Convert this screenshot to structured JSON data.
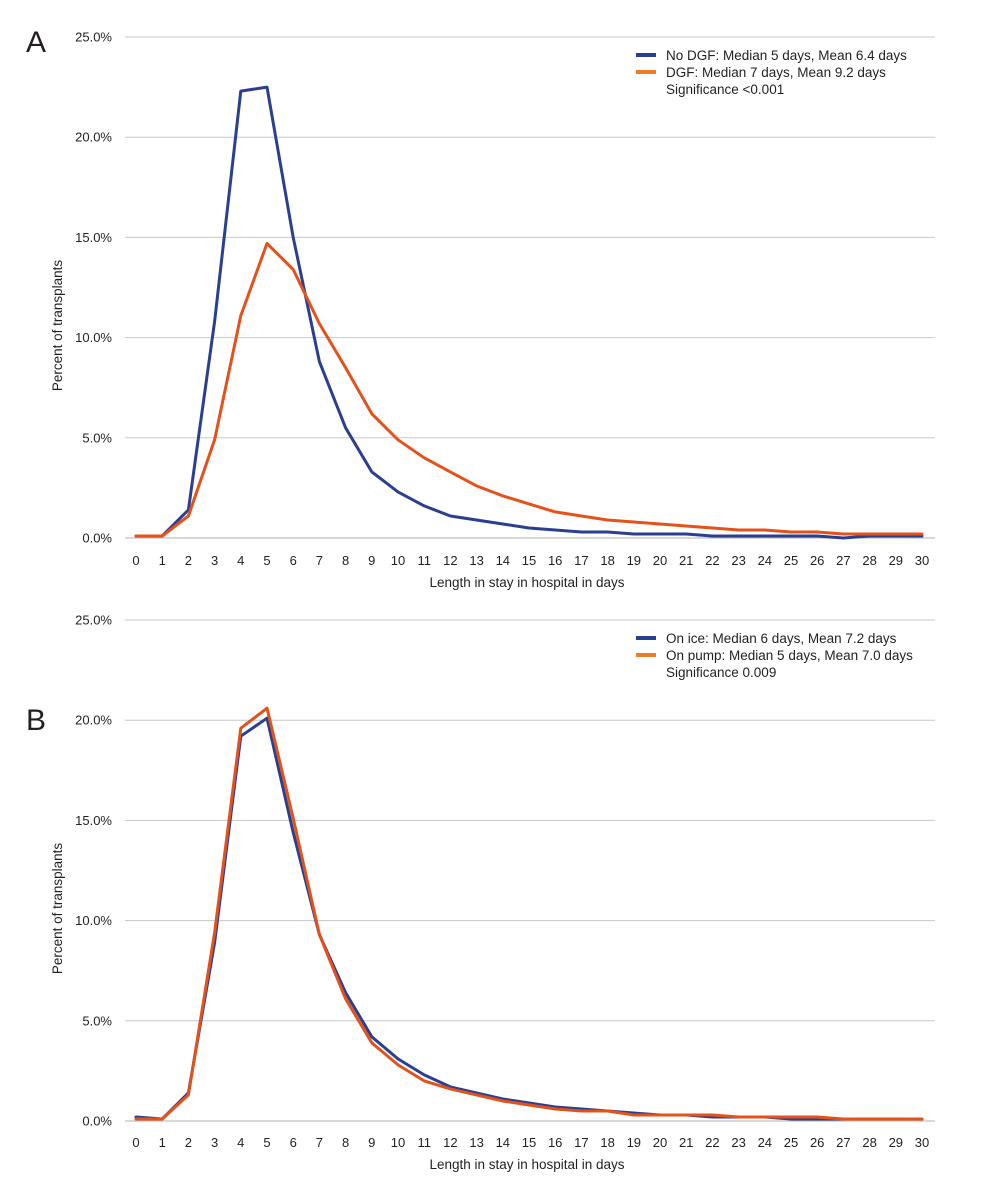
{
  "colors": {
    "series_blue": "#2a3f8f",
    "series_orange": "#e4521b",
    "legend_orange": "#f07b22",
    "gridline": "#c8c8c8",
    "text": "#231f20"
  },
  "chart_data": [
    {
      "panel": "A",
      "type": "line",
      "xlabel": "Length in stay in hospital in days",
      "ylabel": "Percent of transplants",
      "x": [
        0,
        1,
        2,
        3,
        4,
        5,
        6,
        7,
        8,
        9,
        10,
        11,
        12,
        13,
        14,
        15,
        16,
        17,
        18,
        19,
        20,
        21,
        22,
        23,
        24,
        25,
        26,
        27,
        28,
        29,
        30
      ],
      "ylim": [
        0,
        25
      ],
      "yticks": [
        0,
        5,
        10,
        15,
        20,
        25
      ],
      "ytick_labels": [
        "0.0%",
        "5.0%",
        "10.0%",
        "15.0%",
        "20.0%",
        "25.0%"
      ],
      "grid": true,
      "legend_position": "top-right",
      "series": [
        {
          "name": "No DGF: Median 5 days, Mean 6.4 days",
          "color": "#2a3f8f",
          "values": [
            0.1,
            0.1,
            1.4,
            10.8,
            22.3,
            22.5,
            15.0,
            8.8,
            5.5,
            3.3,
            2.3,
            1.6,
            1.1,
            0.9,
            0.7,
            0.5,
            0.4,
            0.3,
            0.3,
            0.2,
            0.2,
            0.2,
            0.1,
            0.1,
            0.1,
            0.1,
            0.1,
            0.0,
            0.1,
            0.1,
            0.1
          ]
        },
        {
          "name": "DGF: Median 7 days, Mean 9.2 days",
          "color": "#e4521b",
          "values": [
            0.1,
            0.1,
            1.1,
            4.9,
            11.1,
            14.7,
            13.4,
            10.7,
            8.5,
            6.2,
            4.9,
            4.0,
            3.3,
            2.6,
            2.1,
            1.7,
            1.3,
            1.1,
            0.9,
            0.8,
            0.7,
            0.6,
            0.5,
            0.4,
            0.4,
            0.3,
            0.3,
            0.2,
            0.2,
            0.2,
            0.2
          ]
        }
      ],
      "note": "Significance <0.001"
    },
    {
      "panel": "B",
      "type": "line",
      "xlabel": "Length in stay in hospital in days",
      "ylabel": "Percent of transplants",
      "x": [
        0,
        1,
        2,
        3,
        4,
        5,
        6,
        7,
        8,
        9,
        10,
        11,
        12,
        13,
        14,
        15,
        16,
        17,
        18,
        19,
        20,
        21,
        22,
        23,
        24,
        25,
        26,
        27,
        28,
        29,
        30
      ],
      "ylim": [
        0,
        25
      ],
      "yticks": [
        0,
        5,
        10,
        15,
        20,
        25
      ],
      "ytick_labels": [
        "0.0%",
        "5.0%",
        "10.0%",
        "15.0%",
        "20.0%",
        "25.0%"
      ],
      "grid": true,
      "legend_position": "top-right",
      "series": [
        {
          "name": "On ice: Median 6 days, Mean 7.2 days",
          "color": "#2a3f8f",
          "values": [
            0.2,
            0.1,
            1.4,
            8.9,
            19.2,
            20.1,
            14.4,
            9.3,
            6.4,
            4.2,
            3.1,
            2.3,
            1.7,
            1.4,
            1.1,
            0.9,
            0.7,
            0.6,
            0.5,
            0.4,
            0.3,
            0.3,
            0.2,
            0.2,
            0.2,
            0.1,
            0.1,
            0.1,
            0.1,
            0.1,
            0.1
          ]
        },
        {
          "name": "On pump: Median 5 days, Mean 7.0 days",
          "color": "#e4521b",
          "values": [
            0.1,
            0.1,
            1.3,
            9.4,
            19.6,
            20.6,
            15.1,
            9.3,
            6.1,
            3.9,
            2.8,
            2.0,
            1.6,
            1.3,
            1.0,
            0.8,
            0.6,
            0.5,
            0.5,
            0.3,
            0.3,
            0.3,
            0.3,
            0.2,
            0.2,
            0.2,
            0.2,
            0.1,
            0.1,
            0.1,
            0.1
          ]
        }
      ],
      "note": "Significance 0.009"
    }
  ]
}
